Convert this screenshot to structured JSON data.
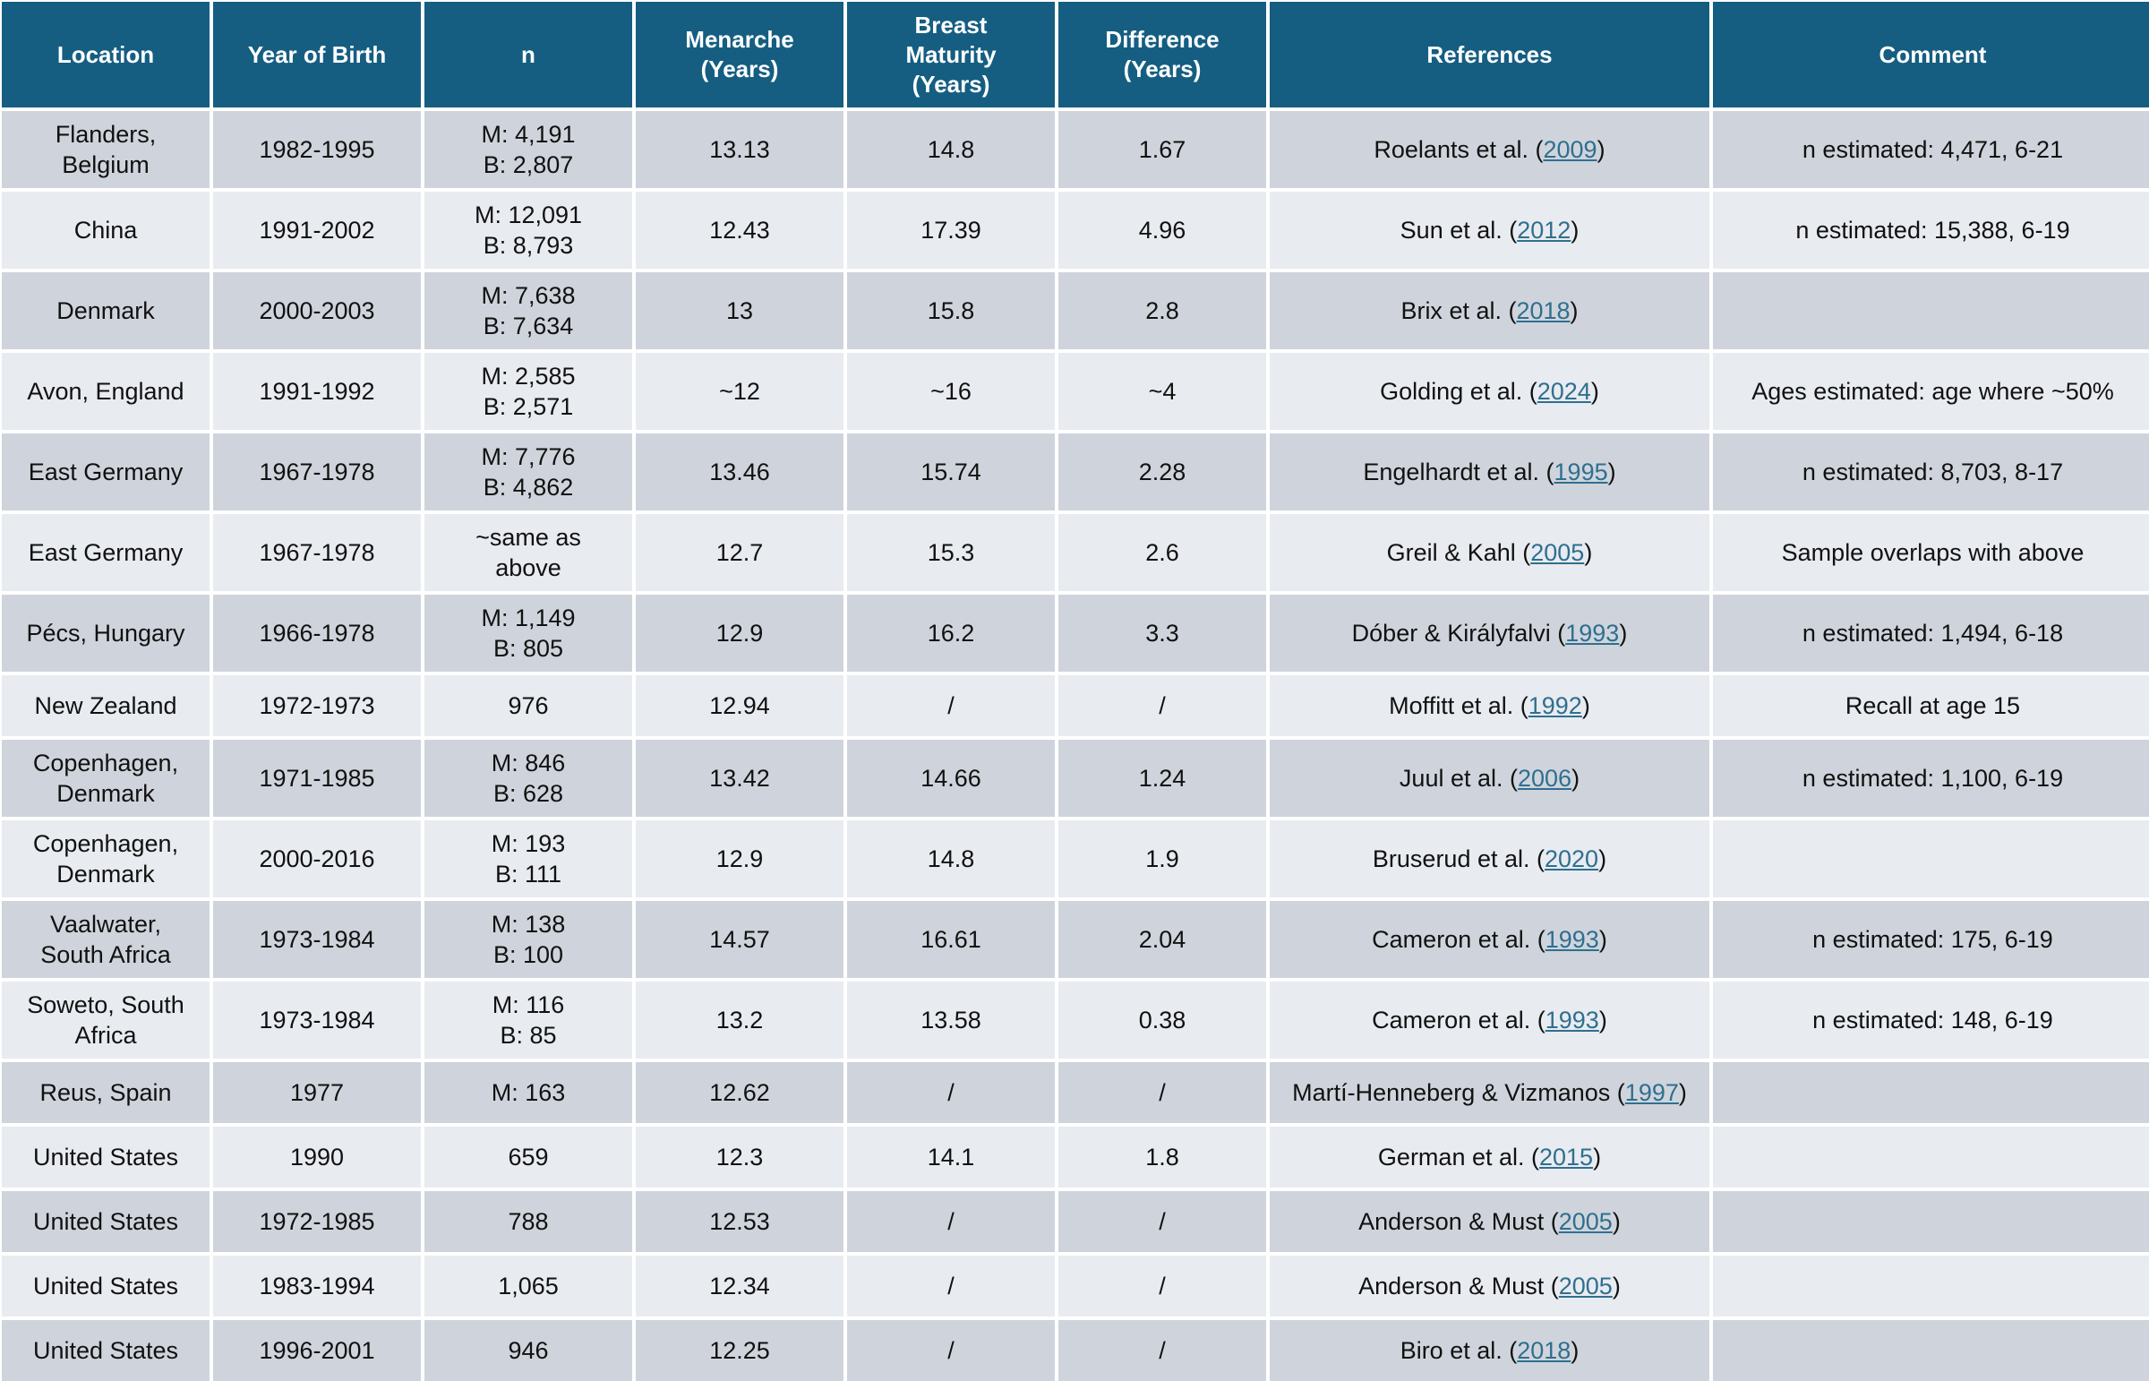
{
  "headers": [
    {
      "lines": [
        "Location"
      ]
    },
    {
      "lines": [
        "Year of Birth"
      ]
    },
    {
      "lines": [
        "n"
      ]
    },
    {
      "lines": [
        "Menarche",
        "(Years)"
      ]
    },
    {
      "lines": [
        "Breast",
        "Maturity",
        "(Years)"
      ]
    },
    {
      "lines": [
        "Difference",
        "(Years)"
      ]
    },
    {
      "lines": [
        "References"
      ]
    },
    {
      "lines": [
        "Comment"
      ]
    }
  ],
  "rows": [
    {
      "location": [
        "Flanders,",
        "Belgium"
      ],
      "year": "1982-1995",
      "n": [
        "M: 4,191",
        "B: 2,807"
      ],
      "menarche": "13.13",
      "breast": "14.8",
      "difference": "1.67",
      "ref_author": "Roelants et al. (",
      "ref_year": "2009",
      "comment": "n estimated: 4,471, 6-21"
    },
    {
      "location": [
        "China"
      ],
      "year": "1991-2002",
      "n": [
        "M: 12,091",
        "B: 8,793"
      ],
      "menarche": "12.43",
      "breast": "17.39",
      "difference": "4.96",
      "ref_author": "Sun et al. (",
      "ref_year": "2012",
      "comment": "n estimated: 15,388, 6-19"
    },
    {
      "location": [
        "Denmark"
      ],
      "year": "2000-2003",
      "n": [
        "M: 7,638",
        "B: 7,634"
      ],
      "menarche": "13",
      "breast": "15.8",
      "difference": "2.8",
      "ref_author": "Brix et al. (",
      "ref_year": "2018",
      "comment": ""
    },
    {
      "location": [
        "Avon, England"
      ],
      "year": "1991-1992",
      "n": [
        "M: 2,585",
        "B: 2,571"
      ],
      "menarche": "~12",
      "breast": "~16",
      "difference": "~4",
      "ref_author": "Golding et al. (",
      "ref_year": "2024",
      "comment": "Ages estimated: age where ~50%"
    },
    {
      "location": [
        "East Germany"
      ],
      "year": "1967-1978",
      "n": [
        "M: 7,776",
        "B: 4,862"
      ],
      "menarche": "13.46",
      "breast": "15.74",
      "difference": "2.28",
      "ref_author": "Engelhardt et al. (",
      "ref_year": "1995",
      "comment": "n estimated: 8,703, 8-17"
    },
    {
      "location": [
        "East Germany"
      ],
      "year": "1967-1978",
      "n": [
        "~same as",
        "above"
      ],
      "menarche": "12.7",
      "breast": "15.3",
      "difference": "2.6",
      "ref_author": "Greil & Kahl (",
      "ref_year": "2005",
      "comment": "Sample overlaps with above"
    },
    {
      "location": [
        "Pécs, Hungary"
      ],
      "year": "1966-1978",
      "n": [
        "M: 1,149",
        "B: 805"
      ],
      "menarche": "12.9",
      "breast": "16.2",
      "difference": "3.3",
      "ref_author": "Dóber & Királyfalvi (",
      "ref_year": "1993",
      "comment": "n estimated: 1,494, 6-18"
    },
    {
      "location": [
        "New Zealand"
      ],
      "year": "1972-1973",
      "n": [
        "976"
      ],
      "menarche": "12.94",
      "breast": "/",
      "difference": "/",
      "ref_author": "Moffitt et al. (",
      "ref_year": "1992",
      "comment": "Recall at age 15"
    },
    {
      "location": [
        "Copenhagen,",
        "Denmark"
      ],
      "year": "1971-1985",
      "n": [
        "M: 846",
        "B: 628"
      ],
      "menarche": "13.42",
      "breast": "14.66",
      "difference": "1.24",
      "ref_author": "Juul et al. (",
      "ref_year": "2006",
      "comment": "n estimated: 1,100, 6-19"
    },
    {
      "location": [
        "Copenhagen,",
        "Denmark"
      ],
      "year": "2000-2016",
      "n": [
        "M: 193",
        "B: 111"
      ],
      "menarche": "12.9",
      "breast": "14.8",
      "difference": "1.9",
      "ref_author": "Bruserud et al. (",
      "ref_year": "2020",
      "comment": ""
    },
    {
      "location": [
        "Vaalwater,",
        "South Africa"
      ],
      "year": "1973-1984",
      "n": [
        "M: 138",
        "B: 100"
      ],
      "menarche": "14.57",
      "breast": "16.61",
      "difference": "2.04",
      "ref_author": "Cameron et al. (",
      "ref_year": "1993",
      "comment": "n estimated: 175, 6-19"
    },
    {
      "location": [
        "Soweto, South",
        "Africa"
      ],
      "year": "1973-1984",
      "n": [
        "M: 116",
        "B: 85"
      ],
      "menarche": "13.2",
      "breast": "13.58",
      "difference": "0.38",
      "ref_author": "Cameron et al. (",
      "ref_year": "1993",
      "comment": "n estimated: 148, 6-19"
    },
    {
      "location": [
        "Reus, Spain"
      ],
      "year": "1977",
      "n": [
        "M: 163"
      ],
      "menarche": "12.62",
      "breast": "/",
      "difference": "/",
      "ref_author": "Martí-Henneberg & Vizmanos (",
      "ref_year": "1997",
      "comment": ""
    },
    {
      "location": [
        "United States"
      ],
      "year": "1990",
      "n": [
        "659"
      ],
      "menarche": "12.3",
      "breast": "14.1",
      "difference": "1.8",
      "ref_author": "German et al. (",
      "ref_year": "2015",
      "comment": ""
    },
    {
      "location": [
        "United States"
      ],
      "year": "1972-1985",
      "n": [
        "788"
      ],
      "menarche": "12.53",
      "breast": "/",
      "difference": "/",
      "ref_author": "Anderson & Must (",
      "ref_year": "2005",
      "comment": ""
    },
    {
      "location": [
        "United States"
      ],
      "year": "1983-1994",
      "n": [
        "1,065"
      ],
      "menarche": "12.34",
      "breast": "/",
      "difference": "/",
      "ref_author": "Anderson & Must (",
      "ref_year": "2005",
      "comment": ""
    },
    {
      "location": [
        "United States"
      ],
      "year": "1996-2001",
      "n": [
        "946"
      ],
      "menarche": "12.25",
      "breast": "/",
      "difference": "/",
      "ref_author": "Biro et al. (",
      "ref_year": "2018",
      "comment": ""
    }
  ],
  "ref_close": ")"
}
